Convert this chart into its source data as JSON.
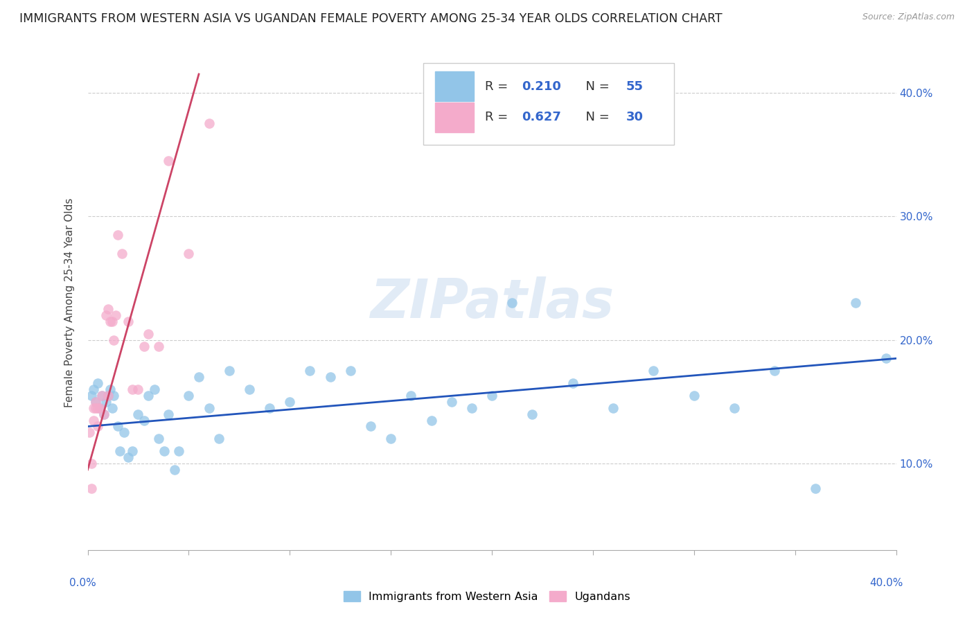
{
  "title": "IMMIGRANTS FROM WESTERN ASIA VS UGANDAN FEMALE POVERTY AMONG 25-34 YEAR OLDS CORRELATION CHART",
  "source": "Source: ZipAtlas.com",
  "ylabel": "Female Poverty Among 25-34 Year Olds",
  "xlim": [
    0.0,
    0.4
  ],
  "ylim": [
    0.03,
    0.43
  ],
  "xticks": [
    0.0,
    0.05,
    0.1,
    0.15,
    0.2,
    0.25,
    0.3,
    0.35,
    0.4
  ],
  "yticks": [
    0.1,
    0.2,
    0.3,
    0.4
  ],
  "ytick_labels": [
    "10.0%",
    "20.0%",
    "30.0%",
    "40.0%"
  ],
  "blue_R": 0.21,
  "blue_N": 55,
  "pink_R": 0.627,
  "pink_N": 30,
  "blue_color": "#92C5E8",
  "pink_color": "#F4ABCB",
  "blue_line_color": "#2255BB",
  "pink_line_color": "#CC4466",
  "legend_label_blue": "Immigrants from Western Asia",
  "legend_label_pink": "Ugandans",
  "watermark": "ZIPatlas",
  "watermark_blue": "#C5D8EE",
  "title_fontsize": 12.5,
  "axis_label_fontsize": 11,
  "tick_fontsize": 11,
  "value_color": "#3366CC",
  "blue_scatter_x": [
    0.002,
    0.003,
    0.004,
    0.005,
    0.006,
    0.007,
    0.008,
    0.009,
    0.01,
    0.011,
    0.012,
    0.013,
    0.015,
    0.016,
    0.018,
    0.02,
    0.022,
    0.025,
    0.028,
    0.03,
    0.033,
    0.035,
    0.038,
    0.04,
    0.043,
    0.045,
    0.05,
    0.055,
    0.06,
    0.065,
    0.07,
    0.08,
    0.09,
    0.1,
    0.11,
    0.12,
    0.13,
    0.14,
    0.15,
    0.16,
    0.17,
    0.18,
    0.19,
    0.2,
    0.21,
    0.22,
    0.24,
    0.26,
    0.28,
    0.3,
    0.32,
    0.34,
    0.36,
    0.38,
    0.395
  ],
  "blue_scatter_y": [
    0.155,
    0.16,
    0.15,
    0.165,
    0.145,
    0.155,
    0.14,
    0.15,
    0.155,
    0.16,
    0.145,
    0.155,
    0.13,
    0.11,
    0.125,
    0.105,
    0.11,
    0.14,
    0.135,
    0.155,
    0.16,
    0.12,
    0.11,
    0.14,
    0.095,
    0.11,
    0.155,
    0.17,
    0.145,
    0.12,
    0.175,
    0.16,
    0.145,
    0.15,
    0.175,
    0.17,
    0.175,
    0.13,
    0.12,
    0.155,
    0.135,
    0.15,
    0.145,
    0.155,
    0.23,
    0.14,
    0.165,
    0.145,
    0.175,
    0.155,
    0.145,
    0.175,
    0.08,
    0.23,
    0.185
  ],
  "pink_scatter_x": [
    0.001,
    0.002,
    0.002,
    0.003,
    0.003,
    0.004,
    0.004,
    0.005,
    0.005,
    0.006,
    0.007,
    0.008,
    0.009,
    0.01,
    0.01,
    0.011,
    0.012,
    0.013,
    0.014,
    0.015,
    0.017,
    0.02,
    0.022,
    0.025,
    0.028,
    0.03,
    0.035,
    0.04,
    0.05,
    0.06
  ],
  "pink_scatter_y": [
    0.125,
    0.08,
    0.1,
    0.135,
    0.145,
    0.145,
    0.15,
    0.13,
    0.145,
    0.145,
    0.155,
    0.14,
    0.22,
    0.225,
    0.155,
    0.215,
    0.215,
    0.2,
    0.22,
    0.285,
    0.27,
    0.215,
    0.16,
    0.16,
    0.195,
    0.205,
    0.195,
    0.345,
    0.27,
    0.375
  ],
  "blue_trend_x": [
    0.0,
    0.4
  ],
  "blue_trend_y": [
    0.13,
    0.185
  ],
  "pink_trend_x": [
    0.0,
    0.055
  ],
  "pink_trend_y": [
    0.095,
    0.415
  ]
}
